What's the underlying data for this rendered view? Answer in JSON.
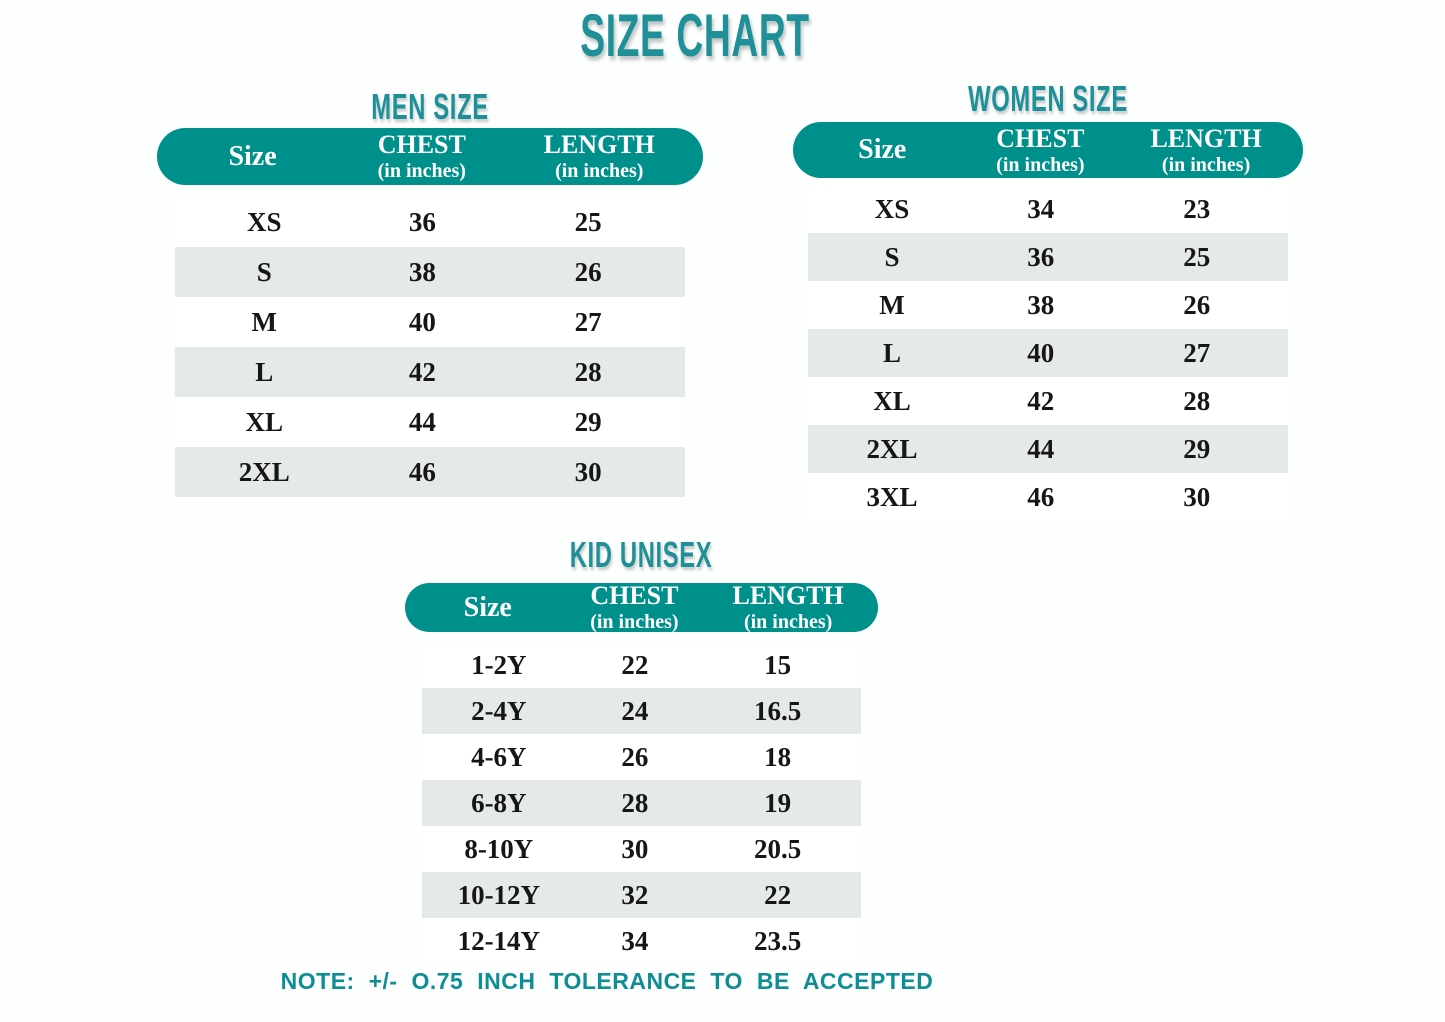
{
  "page": {
    "title": "SIZE CHART",
    "note": "NOTE: +/- O.75 INCH TOLERANCE TO BE ACCEPTED"
  },
  "colors": {
    "teal_header": "#00908b",
    "teal_title": "#1f9097",
    "teal_note": "#0e8e94",
    "row_alt_gray": "#e5eae8",
    "text_dark": "#161616",
    "background": "#fdfefe"
  },
  "columns": {
    "size": "Size",
    "chest": "CHEST",
    "length": "LENGTH",
    "unit": "(in inches)"
  },
  "tables": [
    {
      "id": "men",
      "title": "MEN SIZE",
      "rows": [
        [
          "XS",
          "36",
          "25"
        ],
        [
          "S",
          "38",
          "26"
        ],
        [
          "M",
          "40",
          "27"
        ],
        [
          "L",
          "42",
          "28"
        ],
        [
          "XL",
          "44",
          "29"
        ],
        [
          "2XL",
          "46",
          "30"
        ]
      ]
    },
    {
      "id": "women",
      "title": "WOMEN SIZE",
      "rows": [
        [
          "XS",
          "34",
          "23"
        ],
        [
          "S",
          "36",
          "25"
        ],
        [
          "M",
          "38",
          "26"
        ],
        [
          "L",
          "40",
          "27"
        ],
        [
          "XL",
          "42",
          "28"
        ],
        [
          "2XL",
          "44",
          "29"
        ],
        [
          "3XL",
          "46",
          "30"
        ]
      ]
    },
    {
      "id": "kid",
      "title": "KID UNISEX",
      "rows": [
        [
          "1-2Y",
          "22",
          "15"
        ],
        [
          "2-4Y",
          "24",
          "16.5"
        ],
        [
          "4-6Y",
          "26",
          "18"
        ],
        [
          "6-8Y",
          "28",
          "19"
        ],
        [
          "8-10Y",
          "30",
          "20.5"
        ],
        [
          "10-12Y",
          "32",
          "22"
        ],
        [
          "12-14Y",
          "34",
          "23.5"
        ]
      ]
    }
  ]
}
